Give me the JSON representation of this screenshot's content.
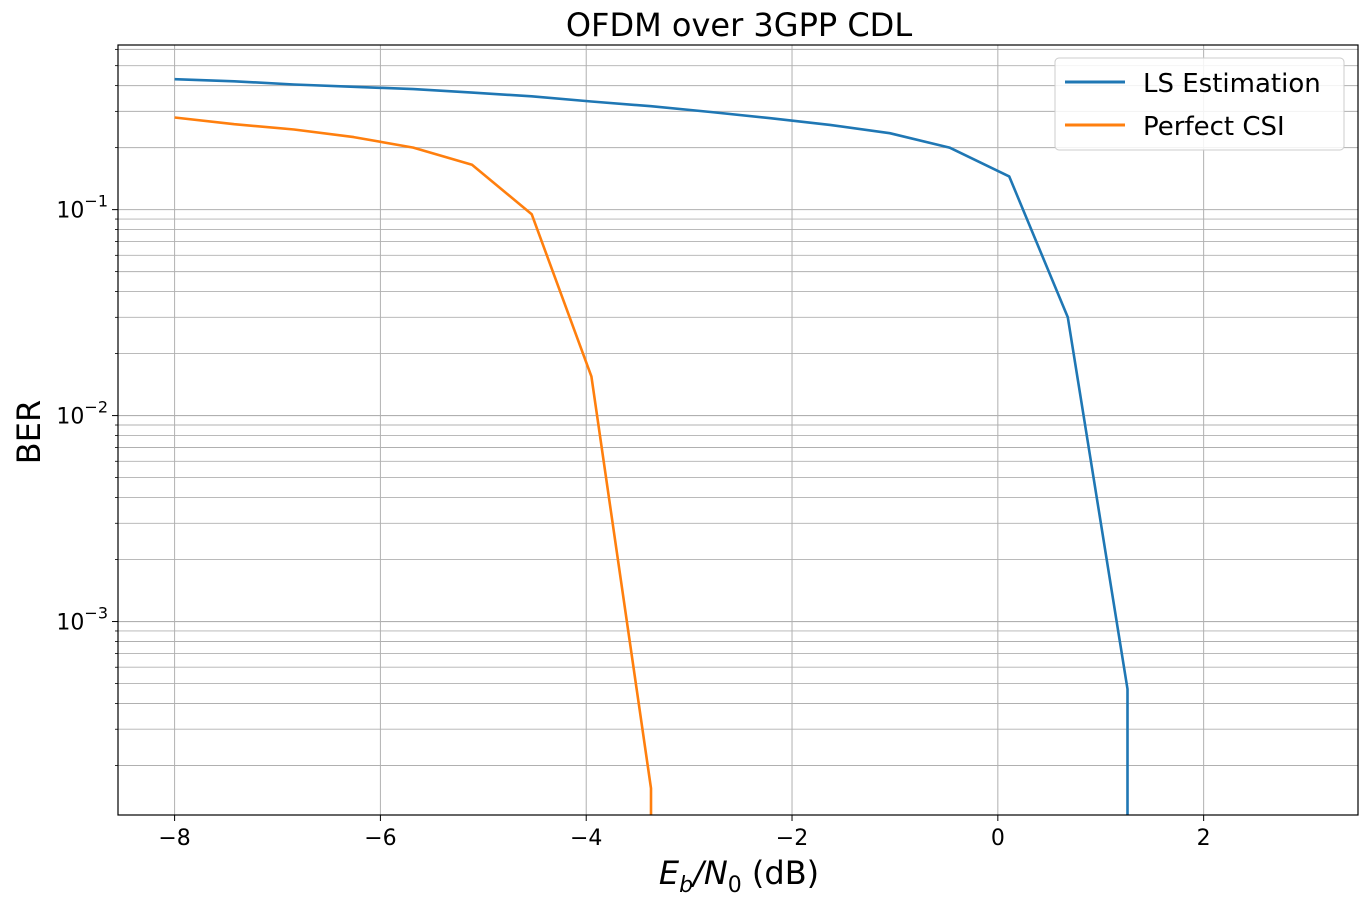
{
  "chart_data": {
    "type": "line",
    "title": "OFDM over 3GPP CDL",
    "xlabel": {
      "main": "E",
      "sub1": "b",
      "slash": "/N",
      "sub2": "0",
      "unit": " (dB)"
    },
    "ylabel": "BER",
    "xlim": [
      -8.55,
      3.5
    ],
    "ylim": [
      0.000115,
      0.63
    ],
    "yscale": "log",
    "grid": {
      "major": true,
      "minor_y": true
    },
    "legend": {
      "placement": "top-right"
    },
    "x_ticks": [
      {
        "value": -8,
        "label": "−8"
      },
      {
        "value": -6,
        "label": "−6"
      },
      {
        "value": -4,
        "label": "−4"
      },
      {
        "value": -2,
        "label": "−2"
      },
      {
        "value": 0,
        "label": "0"
      },
      {
        "value": 2,
        "label": "2"
      }
    ],
    "y_ticks": [
      {
        "value": 0.1,
        "base": "10",
        "exp": "−1"
      },
      {
        "value": 0.01,
        "base": "10",
        "exp": "−2"
      },
      {
        "value": 0.001,
        "base": "10",
        "exp": "−3"
      }
    ],
    "series": [
      {
        "name": "LS Estimation",
        "color": "#1f77b4",
        "x": [
          -8.0,
          -7.42,
          -6.84,
          -6.26,
          -5.68,
          -5.11,
          -4.53,
          -3.95,
          -3.37,
          -2.79,
          -2.21,
          -1.63,
          -1.05,
          -0.47,
          0.11,
          0.68,
          1.26,
          1.26
        ],
        "y": [
          0.43,
          0.42,
          0.405,
          0.395,
          0.385,
          0.37,
          0.355,
          0.335,
          0.318,
          0.298,
          0.278,
          0.258,
          0.235,
          0.2,
          0.145,
          0.03,
          0.00047,
          0.000115
        ]
      },
      {
        "name": "Perfect CSI",
        "color": "#ff7f0e",
        "x": [
          -8.0,
          -7.42,
          -6.84,
          -6.26,
          -5.68,
          -5.11,
          -4.53,
          -3.95,
          -3.37,
          -3.37
        ],
        "y": [
          0.28,
          0.26,
          0.245,
          0.225,
          0.2,
          0.165,
          0.095,
          0.0155,
          0.000155,
          0.000115
        ]
      }
    ]
  }
}
